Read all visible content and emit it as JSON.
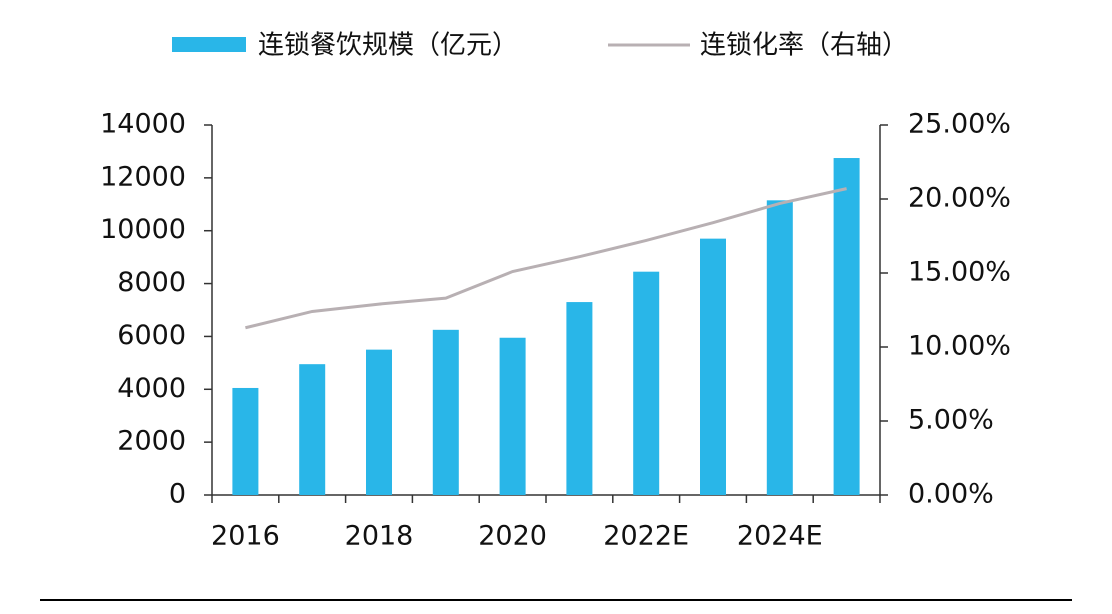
{
  "chart_data": {
    "type": "bar",
    "categories": [
      "2016",
      null,
      "2018",
      null,
      "2020",
      null,
      "2022E",
      null,
      "2024E",
      null
    ],
    "series": [
      {
        "name": "连锁餐饮规模（亿元）",
        "type": "bar",
        "color": "#29b6e8",
        "values": [
          4050,
          4950,
          5500,
          6250,
          5950,
          7300,
          8450,
          9700,
          11150,
          12750
        ]
      },
      {
        "name": "连锁化率（右轴）",
        "type": "line",
        "axis": "y2",
        "color": "#b8b0b3",
        "values": [
          11.3,
          12.4,
          12.9,
          13.3,
          15.1,
          16.1,
          17.2,
          18.4,
          19.7,
          20.7
        ]
      }
    ],
    "ylim": [
      0,
      14000
    ],
    "yticks": [
      0,
      2000,
      4000,
      6000,
      8000,
      10000,
      12000,
      14000
    ],
    "y2lim": [
      0,
      25
    ],
    "y2ticks": [
      {
        "value": 0,
        "label": "0.00%"
      },
      {
        "value": 5,
        "label": "5.00%"
      },
      {
        "value": 10,
        "label": "10.00%"
      },
      {
        "value": 15,
        "label": "15.00%"
      },
      {
        "value": 20,
        "label": "20.00%"
      },
      {
        "value": 25,
        "label": "25.00%"
      }
    ],
    "legend": "top"
  }
}
